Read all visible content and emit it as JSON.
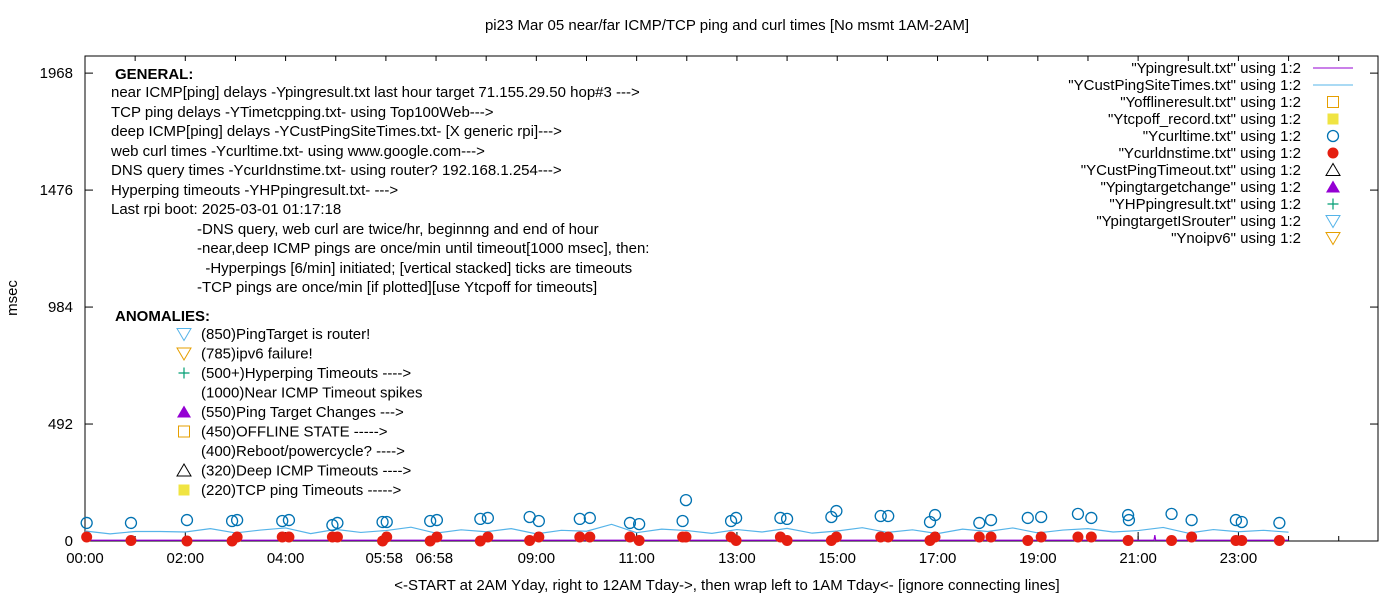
{
  "chart_data": {
    "type": "scatter",
    "title": "pi23 Mar 05  near/far ICMP/TCP ping and curl times [No msmt 1AM-2AM]",
    "xlabel": "<-START at 2AM Yday, right to 12AM Tday->, then wrap left to 1AM Tday<- [ignore connecting lines]",
    "ylabel": "msec",
    "xlim": [
      "00:00",
      "25:47"
    ],
    "ylim": [
      0,
      2040
    ],
    "yticks": [
      "0",
      "492",
      "984",
      "1476",
      "1968"
    ],
    "xticks": [
      "00:00",
      "02:00",
      "04:00",
      "05:58",
      "06:58",
      "09:00",
      "11:00",
      "13:00",
      "15:00",
      "17:00",
      "19:00",
      "21:00",
      "23:00"
    ],
    "grid": false,
    "legend_position": "top-right",
    "legend": [
      {
        "label": "\"Ypingresult.txt\" using 1:2",
        "marker": "line",
        "color": "#9400d3"
      },
      {
        "label": "\"YCustPingSiteTimes.txt\" using 1:2",
        "marker": "line",
        "color": "#56b4e9"
      },
      {
        "label": "\"Yofflineresult.txt\" using 1:2",
        "marker": "open-square",
        "color": "#e69f00"
      },
      {
        "label": "\"Ytcpoff_record.txt\" using 1:2",
        "marker": "filled-square",
        "color": "#f0e442"
      },
      {
        "label": "\"Ycurltime.txt\" using 1:2",
        "marker": "open-circle",
        "color": "#0072b2"
      },
      {
        "label": "\"Ycurldnstime.txt\" using 1:2",
        "marker": "filled-circle",
        "color": "#e51e10"
      },
      {
        "label": "\"YCustPingTimeout.txt\" using 1:2",
        "marker": "open-triangle",
        "color": "#000000"
      },
      {
        "label": "\"Ypingtargetchange\" using 1:2",
        "marker": "filled-triangle",
        "color": "#9400d3"
      },
      {
        "label": "\"YHPpingresult.txt\" using 1:2",
        "marker": "plus",
        "color": "#009e73"
      },
      {
        "label": "\"YpingtargetISrouter\" using 1:2",
        "marker": "open-triangle-down",
        "color": "#56b4e9"
      },
      {
        "label": "\"Ynoipv6\" using 1:2",
        "marker": "open-triangle-down",
        "color": "#e69f00"
      }
    ],
    "general": {
      "heading": "GENERAL:",
      "lines": [
        "near ICMP[ping] delays -Ypingresult.txt last hour target 71.155.29.50 hop#3 --->",
        "TCP ping delays -YTimetcpping.txt- using Top100Web--->",
        "deep ICMP[ping] delays -YCustPingSiteTimes.txt- [X generic rpi]--->",
        "web curl times -Ycurltime.txt- using www.google.com--->",
        "DNS query times -YcurIdnstime.txt- using router? 192.168.1.254--->",
        "Hyperping timeouts -YHPpingresult.txt- --->",
        "Last rpi boot: 2025-03-01 01:17:18"
      ],
      "notes": [
        "-DNS query, web curl are twice/hr, beginnng and end of hour",
        "-near,deep ICMP pings are once/min until timeout[1000 msec], then:",
        "  -Hyperpings [6/min] initiated; [vertical stacked] ticks are timeouts",
        "-TCP pings are once/min [if plotted][use Ytcpoff for timeouts]"
      ]
    },
    "anomalies": {
      "heading": "ANOMALIES:",
      "items": [
        {
          "label": "(850)PingTarget is router!",
          "marker": "open-triangle-down",
          "color": "#56b4e9"
        },
        {
          "label": "(785)ipv6 failure!",
          "marker": "open-triangle-down",
          "color": "#e69f00"
        },
        {
          "label": "(500+)Hyperping Timeouts ---->",
          "marker": "plus",
          "color": "#009e73"
        },
        {
          "label": "(1000)Near ICMP Timeout spikes",
          "marker": "none",
          "color": ""
        },
        {
          "label": "(550)Ping Target Changes --->",
          "marker": "filled-triangle",
          "color": "#9400d3"
        },
        {
          "label": "(450)OFFLINE STATE ----->",
          "marker": "open-square",
          "color": "#e69f00"
        },
        {
          "label": "(400)Reboot/powercycle? ---->",
          "marker": "none",
          "color": ""
        },
        {
          "label": "(320)Deep ICMP Timeouts ---->",
          "marker": "open-triangle",
          "color": "#000000"
        },
        {
          "label": "(220)TCP ping Timeouts ----->",
          "marker": "filled-square",
          "color": "#f0e442"
        }
      ]
    },
    "series": [
      {
        "name": "\"Ypingresult.txt\" using 1:2",
        "type": "line",
        "color": "#9400d3",
        "x": [
          "00:00",
          "21:19",
          "21:20",
          "21:21",
          "21:22",
          "24:00"
        ],
        "y": [
          3,
          3,
          25,
          3,
          3,
          3
        ]
      },
      {
        "name": "\"YCustPingSiteTimes.txt\" using 1:2",
        "type": "line",
        "color": "#56b4e9",
        "x": [
          "00:00",
          "00:30",
          "01:00",
          "01:30",
          "02:00",
          "02:30",
          "03:00",
          "03:30",
          "04:00",
          "04:30",
          "05:00",
          "05:30",
          "06:00",
          "06:30",
          "07:00",
          "07:30",
          "08:00",
          "08:30",
          "09:00",
          "09:30",
          "10:00",
          "10:30",
          "11:00",
          "11:30",
          "12:00",
          "12:30",
          "13:00",
          "13:30",
          "14:00",
          "14:30",
          "15:00",
          "15:30",
          "16:00",
          "16:30",
          "17:00",
          "17:30",
          "18:00",
          "18:30",
          "19:00",
          "19:30",
          "20:00",
          "20:30",
          "21:00",
          "21:30",
          "22:00",
          "22:30",
          "23:00",
          "23:30",
          "24:00"
        ],
        "y": [
          42,
          30,
          40,
          40,
          38,
          52,
          34,
          46,
          55,
          31,
          49,
          36,
          44,
          58,
          33,
          47,
          39,
          52,
          30,
          45,
          41,
          70,
          35,
          50,
          44,
          32,
          48,
          38,
          53,
          33,
          42,
          56,
          36,
          47,
          31,
          50,
          40,
          55,
          34,
          46,
          52,
          38,
          44,
          57,
          33,
          48,
          39,
          45,
          37
        ]
      },
      {
        "name": "\"Ycurltime.txt\" using 1:2",
        "type": "scatter",
        "marker": "open-circle",
        "color": "#0072b2",
        "x": [
          "00:02",
          "00:55",
          "02:02",
          "02:56",
          "03:02",
          "03:56",
          "04:04",
          "04:56",
          "05:02",
          "05:56",
          "06:01",
          "06:53",
          "07:01",
          "07:53",
          "08:02",
          "08:52",
          "09:03",
          "09:52",
          "10:04",
          "10:52",
          "11:03",
          "11:55",
          "11:59",
          "12:53",
          "12:59",
          "13:52",
          "14:00",
          "14:53",
          "14:59",
          "15:52",
          "16:01",
          "16:51",
          "16:57",
          "17:50",
          "18:04",
          "18:48",
          "19:04",
          "19:48",
          "20:04",
          "20:48",
          "20:49",
          "21:40",
          "22:04",
          "22:57",
          "23:04",
          "23:49"
        ],
        "y": [
          76,
          76,
          88,
          84,
          88,
          84,
          88,
          67,
          76,
          80,
          80,
          84,
          88,
          93,
          97,
          101,
          84,
          93,
          97,
          76,
          71,
          84,
          172,
          84,
          97,
          97,
          93,
          101,
          126,
          105,
          105,
          80,
          109,
          76,
          88,
          97,
          101,
          114,
          97,
          109,
          88,
          114,
          88,
          88,
          80,
          76
        ]
      },
      {
        "name": "\"Ycurldnstime.txt\" using 1:2",
        "type": "scatter",
        "marker": "filled-circle",
        "color": "#e51e10",
        "x": [
          "00:02",
          "00:55",
          "02:02",
          "02:56",
          "03:02",
          "03:56",
          "04:04",
          "04:56",
          "05:02",
          "05:56",
          "06:01",
          "06:53",
          "07:01",
          "07:53",
          "08:02",
          "08:52",
          "09:03",
          "09:52",
          "10:04",
          "10:52",
          "11:03",
          "11:55",
          "11:59",
          "12:53",
          "12:59",
          "13:52",
          "14:00",
          "14:53",
          "14:59",
          "15:52",
          "16:01",
          "16:51",
          "16:57",
          "17:50",
          "18:04",
          "18:48",
          "19:04",
          "19:48",
          "20:04",
          "20:48",
          "21:40",
          "22:04",
          "22:57",
          "23:04",
          "23:49"
        ],
        "y": [
          17,
          2,
          0,
          0,
          17,
          17,
          17,
          17,
          17,
          0,
          17,
          0,
          17,
          0,
          17,
          2,
          17,
          17,
          17,
          17,
          2,
          17,
          17,
          17,
          2,
          17,
          2,
          2,
          17,
          17,
          17,
          2,
          17,
          17,
          17,
          2,
          17,
          17,
          17,
          2,
          2,
          17,
          2,
          2,
          2
        ]
      }
    ]
  }
}
